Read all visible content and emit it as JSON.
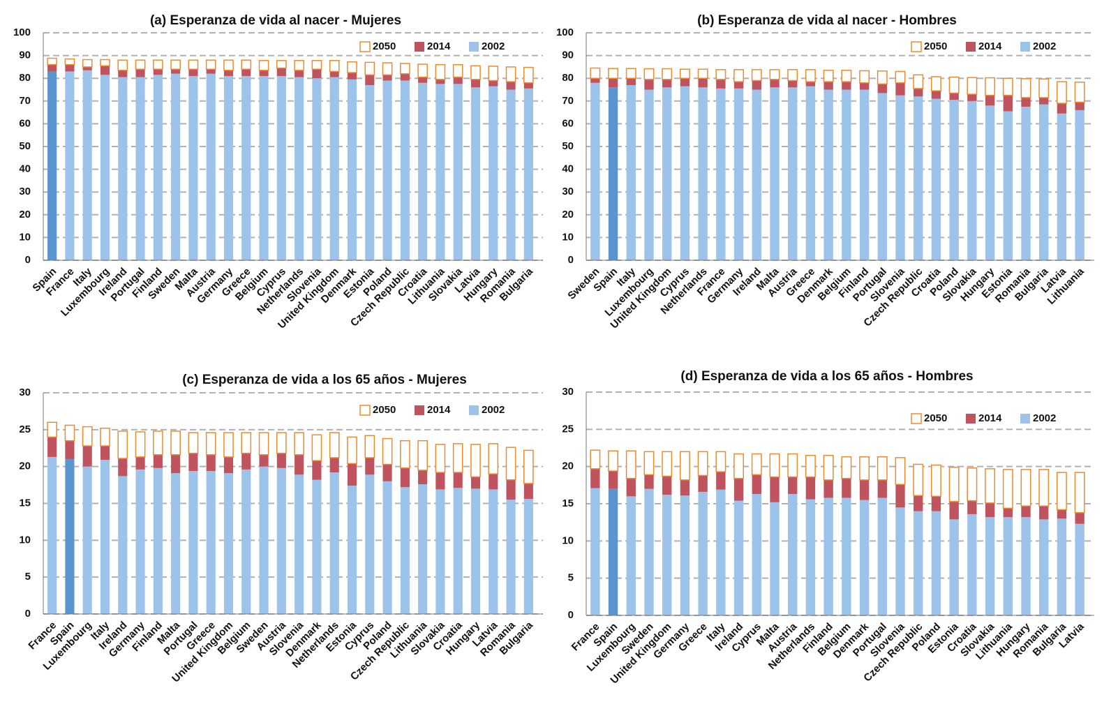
{
  "chart_data": [
    {
      "type": "stacked_bar",
      "title": "(a) Esperanza de vida al nacer - Mujeres",
      "categories": [
        "Spain",
        "France",
        "Italy",
        "Luxembourg",
        "Ireland",
        "Portugal",
        "Finland",
        "Sweden",
        "Malta",
        "Austria",
        "Germany",
        "Greece",
        "Belgium",
        "Cyprus",
        "Netherlands",
        "Slovenia",
        "United Kingdom",
        "Denmark",
        "Estonia",
        "Poland",
        "Czech Republic",
        "Croatia",
        "Lithuania",
        "Slovakia",
        "Latvia",
        "Hungary",
        "Romania",
        "Bulgaria"
      ],
      "series": [
        {
          "name": "2002",
          "color": "#9cc3ea",
          "values": [
            83,
            83,
            83.5,
            81.5,
            80.5,
            80.5,
            81.5,
            82,
            81,
            82,
            81,
            81,
            81,
            81,
            80.5,
            80,
            80.5,
            79.5,
            77,
            79,
            79,
            78,
            77.5,
            77.5,
            76,
            76.5,
            75,
            75.5
          ]
        },
        {
          "name": "2014",
          "color": "#c0545e",
          "values": [
            3,
            3,
            1.5,
            4,
            3,
            3.5,
            2.5,
            2,
            3,
            2,
            2.5,
            3,
            2.5,
            3.5,
            3,
            4,
            2.5,
            3,
            4.5,
            2.5,
            3,
            2.5,
            2,
            3,
            3.5,
            2.5,
            3.5,
            2.5
          ]
        },
        {
          "name": "2050",
          "color": "#f08a2c",
          "hollow": true,
          "values": [
            2.8,
            2.5,
            3.2,
            2.7,
            4.5,
            4,
            4,
            4,
            4,
            4,
            4.5,
            4,
            4.3,
            3.3,
            4.3,
            3.8,
            4.8,
            4.7,
            5.5,
            5.3,
            4.5,
            5.7,
            6.5,
            5.5,
            6,
            6.3,
            6.5,
            6.8
          ]
        }
      ],
      "highlight_index": 0,
      "highlight_color": "#5b95d0",
      "ylim": [
        0,
        100
      ],
      "yticks": [
        0,
        10,
        20,
        30,
        40,
        50,
        60,
        70,
        80,
        90,
        100
      ],
      "grid": true,
      "legend": "top-right"
    },
    {
      "type": "stacked_bar",
      "title": "(b) Esperanza de vida al nacer - Hombres",
      "categories": [
        "Sweden",
        "Spain",
        "Italy",
        "Luxembourg",
        "United Kingdom",
        "Cyprus",
        "Netherlands",
        "France",
        "Germany",
        "Ireland",
        "Malta",
        "Austria",
        "Greece",
        "Denmark",
        "Belgium",
        "Finland",
        "Portugal",
        "Slovenia",
        "Czech Republic",
        "Croatia",
        "Poland",
        "Slovakia",
        "Hungary",
        "Estonia",
        "Romania",
        "Bulgaria",
        "Latvia",
        "Lithuania"
      ],
      "series": [
        {
          "name": "2002",
          "color": "#9cc3ea",
          "values": [
            78,
            76,
            77,
            75,
            76,
            76.5,
            76,
            75.5,
            75.5,
            75,
            76,
            76,
            76.5,
            75,
            75,
            75,
            73.5,
            72.5,
            72,
            71,
            70.5,
            70,
            68,
            65.5,
            67.5,
            68.5,
            64.5,
            66
          ]
        },
        {
          "name": "2014",
          "color": "#c0545e",
          "values": [
            2,
            4,
            3,
            4.5,
            3.5,
            3.5,
            4,
            4,
            3,
            4,
            3.5,
            3,
            2,
            3.5,
            3.5,
            3,
            4,
            5.5,
            3.5,
            3.5,
            3,
            3,
            4.5,
            7,
            4,
            3,
            4.5,
            3.5
          ]
        },
        {
          "name": "2050",
          "color": "#f08a2c",
          "hollow": true,
          "values": [
            4.5,
            4.3,
            4.3,
            4.7,
            4.7,
            4,
            4,
            4.3,
            5.3,
            4.8,
            4.3,
            4.8,
            5.3,
            5,
            5,
            5.3,
            5.7,
            5,
            6,
            6.2,
            7,
            7.3,
            7.7,
            7.5,
            8.3,
            8.2,
            9.5,
            8.8
          ]
        }
      ],
      "highlight_index": 1,
      "highlight_color": "#5b95d0",
      "ylim": [
        0,
        100
      ],
      "yticks": [
        0,
        10,
        20,
        30,
        40,
        50,
        60,
        70,
        80,
        90,
        100
      ],
      "grid": true,
      "legend": "top-right"
    },
    {
      "type": "stacked_bar",
      "title": "(c) Esperanza de vida a los 65 años - Mujeres",
      "categories": [
        "France",
        "Spain",
        "Luxembourg",
        "Italy",
        "Ireland",
        "Germany",
        "Finland",
        "Malta",
        "Portugal",
        "Greece",
        "United Kingdom",
        "Belgium",
        "Sweden",
        "Austria",
        "Slovenia",
        "Denmark",
        "Netherlands",
        "Estonia",
        "Cyprus",
        "Poland",
        "Czech Republic",
        "Lithuania",
        "Slovakia",
        "Croatia",
        "Hungary",
        "Latvia",
        "Romania",
        "Bulgaria"
      ],
      "series": [
        {
          "name": "2002",
          "color": "#9cc3ea",
          "values": [
            21.3,
            21,
            20,
            20.9,
            18.7,
            19.6,
            19.8,
            19.1,
            19.4,
            19.4,
            19.1,
            19.6,
            20,
            19.8,
            18.9,
            18.2,
            19.2,
            17.4,
            18.9,
            18,
            17.2,
            17.6,
            16.9,
            17.1,
            17,
            16.9,
            15.5,
            15.6
          ]
        },
        {
          "name": "2014",
          "color": "#c0545e",
          "values": [
            2.7,
            2.5,
            2.8,
            1.9,
            2.4,
            1.7,
            1.8,
            2.5,
            2.4,
            2.2,
            2.2,
            2.2,
            1.6,
            2,
            2.7,
            2.6,
            2,
            3,
            2.3,
            2.3,
            2.6,
            1.9,
            2.3,
            2.1,
            1.6,
            2.1,
            2.7,
            2.1
          ]
        },
        {
          "name": "2050",
          "color": "#f08a2c",
          "hollow": true,
          "values": [
            2,
            2.1,
            2.6,
            2.4,
            3.7,
            3.4,
            3.2,
            3.2,
            2.8,
            3,
            3.3,
            2.8,
            3,
            2.8,
            3,
            3.5,
            3.4,
            3.6,
            3,
            3.5,
            3.7,
            4,
            3.8,
            3.9,
            4.4,
            4.1,
            4.4,
            4.5
          ]
        }
      ],
      "highlight_index": 1,
      "highlight_color": "#5b95d0",
      "ylim": [
        0,
        30
      ],
      "yticks": [
        0,
        5,
        10,
        15,
        20,
        25,
        30
      ],
      "grid": true,
      "legend": "top-right"
    },
    {
      "type": "stacked_bar",
      "title": "(d) Esperanza de vida a los 65 años - Hombres",
      "categories": [
        "France",
        "Spain",
        "Luxembourg",
        "Sweden",
        "United Kingdom",
        "Germany",
        "Greece",
        "Italy",
        "Ireland",
        "Cyprus",
        "Malta",
        "Austria",
        "Netherlands",
        "Finland",
        "Belgium",
        "Denmark",
        "Portugal",
        "Slovenia",
        "Czech Republic",
        "Poland",
        "Estonia",
        "Croatia",
        "Slovakia",
        "Lithuania",
        "Hungary",
        "Romania",
        "Bulgaria",
        "Latvia"
      ],
      "series": [
        {
          "name": "2002",
          "color": "#9cc3ea",
          "values": [
            17.1,
            17,
            16,
            17,
            16.2,
            16.1,
            16.6,
            16.9,
            15.4,
            16.3,
            15.2,
            16.3,
            15.6,
            15.8,
            15.8,
            15.5,
            15.8,
            14.5,
            14,
            14,
            12.9,
            13.6,
            13.2,
            13.2,
            13.2,
            12.9,
            13,
            12.3
          ]
        },
        {
          "name": "2014",
          "color": "#c0545e",
          "values": [
            2.6,
            2.4,
            2.4,
            1.9,
            2.5,
            2.1,
            2.2,
            2.4,
            3,
            2.6,
            3.4,
            2.3,
            3,
            2.4,
            2.6,
            2.7,
            2.4,
            3.1,
            2.1,
            2,
            2.4,
            1.8,
            1.9,
            1.2,
            1.5,
            1.8,
            1.2,
            1.5
          ]
        },
        {
          "name": "2050",
          "color": "#f08a2c",
          "hollow": true,
          "values": [
            2.5,
            2.7,
            3.7,
            3.1,
            3.3,
            3.8,
            3.2,
            2.7,
            3.3,
            2.8,
            3.1,
            3.1,
            2.9,
            3.3,
            2.9,
            3.1,
            3.1,
            3.6,
            4.2,
            4.2,
            4.6,
            4.4,
            4.6,
            5.2,
            4.9,
            4.9,
            5,
            5.4
          ]
        }
      ],
      "highlight_index": 1,
      "highlight_color": "#5b95d0",
      "ylim": [
        0,
        30
      ],
      "yticks": [
        0,
        5,
        10,
        15,
        20,
        25,
        30
      ],
      "grid": true,
      "legend": "top-right"
    }
  ]
}
